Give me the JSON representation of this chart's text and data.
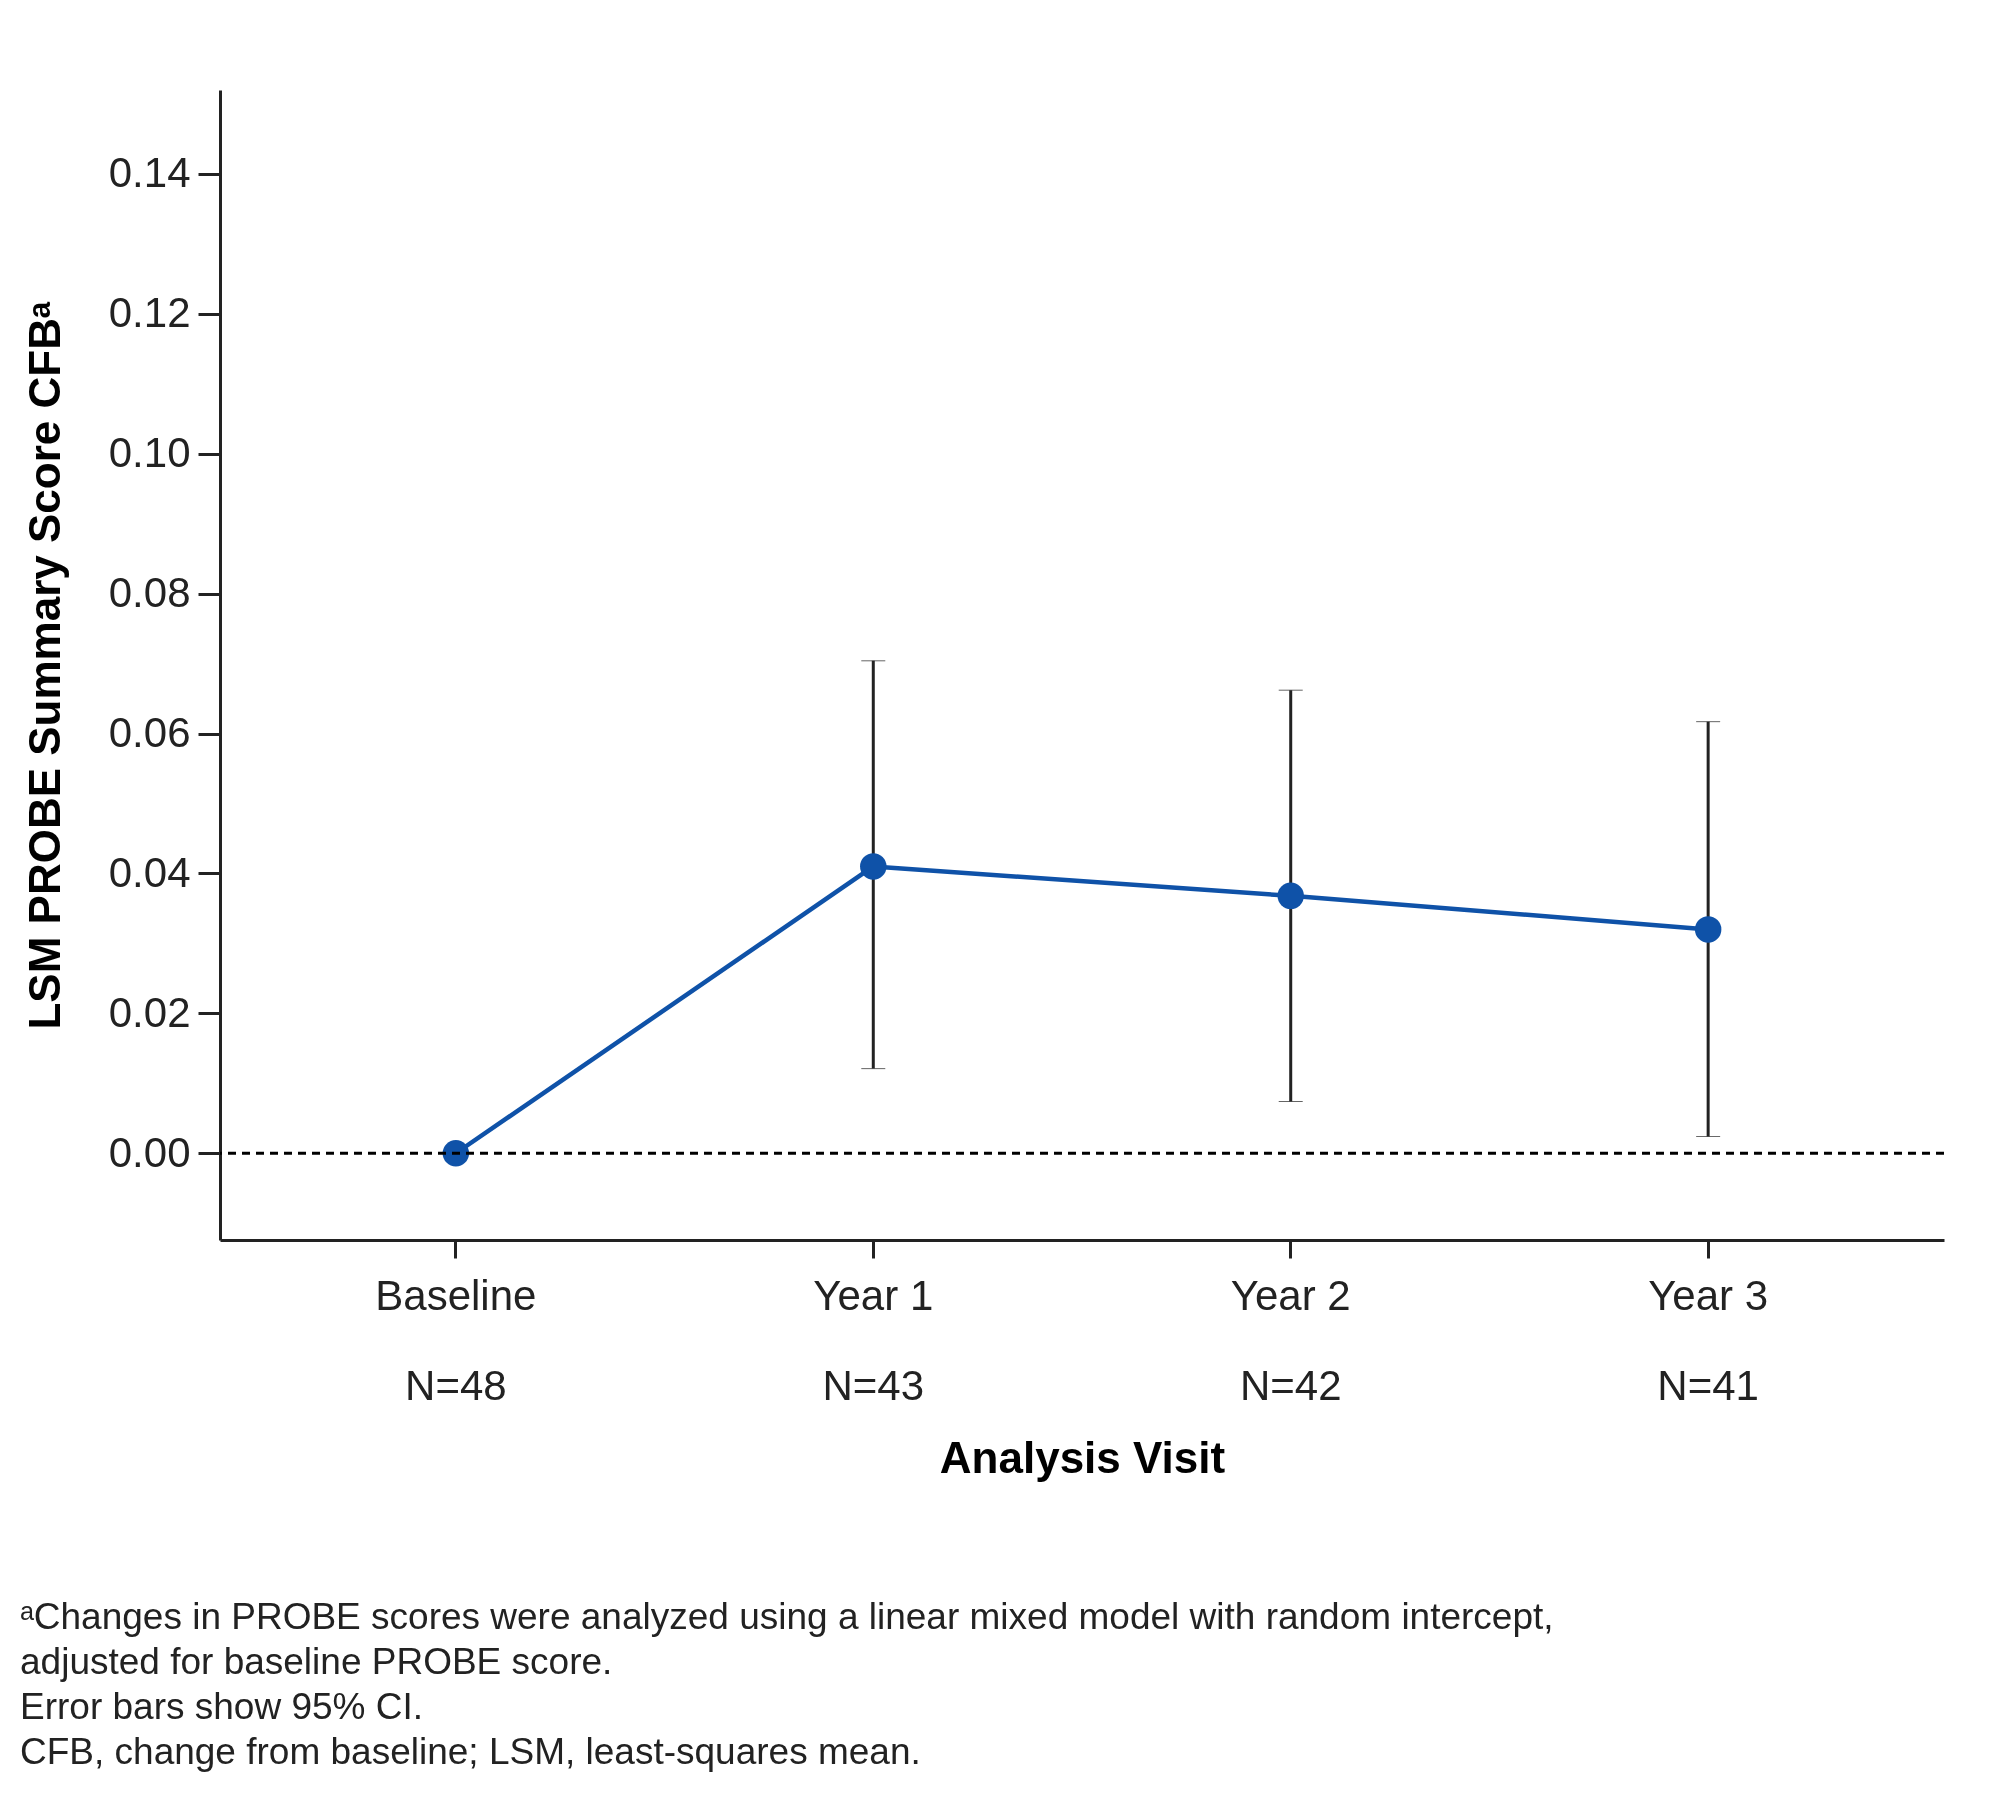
{
  "chart_data": {
    "type": "line",
    "xlabel": "Analysis Visit",
    "ylabel": "LSM PROBE Summary Score CFBᵃ",
    "categories": [
      "Baseline\nN=48",
      "Year 1\nN=43",
      "Year 2\nN=42",
      "Year 3\nN=41"
    ],
    "series": [
      {
        "color": "#0f52a8",
        "values": [
          0.0,
          0.041,
          0.0368,
          0.032
        ],
        "errors": [
          null,
          [
            0.0121,
            0.0704
          ],
          [
            0.0074,
            0.0662
          ],
          [
            0.0024,
            0.0617
          ]
        ]
      }
    ],
    "ylim": [
      -0.0124,
      0.152
    ],
    "yticks": [
      {
        "value": 0,
        "label": "0.00"
      },
      0.02,
      0.04,
      0.06,
      0.08,
      {
        "value": 0.1,
        "label": "0.10"
      },
      0.12,
      0.14
    ],
    "ref_lines": [
      {
        "axis": "y",
        "value": 0,
        "line_style": "dashed",
        "color": "#000000"
      }
    ],
    "grid": false,
    "marker": "circle",
    "line_style": "solid",
    "annotations": [
      "ᵃChanges in PROBE scores were analyzed using a linear mixed model with random intercept, adjusted for baseline PROBE score.",
      "Error bars show 95% CI.",
      "CFB, change from baseline; LSM, least-squares mean."
    ]
  }
}
